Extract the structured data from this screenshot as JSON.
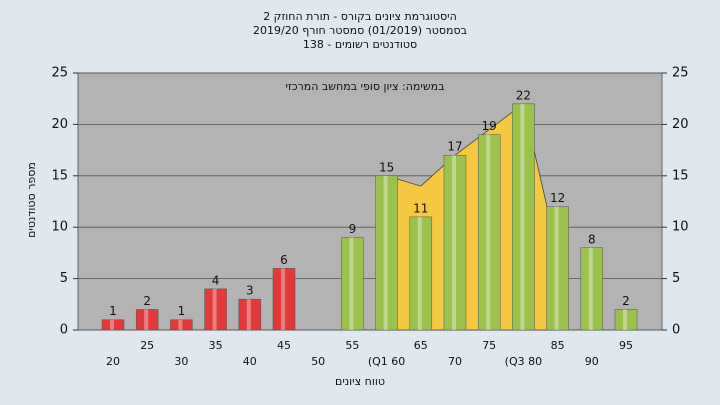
{
  "chart_data": {
    "type": "bar",
    "title": "היסטוגרמת ציונים בקורס - תורת החוזק 2",
    "subtitle": "בסמסטר  (01/2019)  סמסטר חורף 2019/20",
    "subtitle2": "סטודנטים רשומים - 138",
    "annotation": "במשימה: ציון סופי במחשב המרכזי",
    "ylabel": "מספר סטודנטים",
    "xlabel": "טווח ציונים",
    "categories": [
      "20",
      "25",
      "30",
      "35",
      "40",
      "45",
      "50",
      "55",
      "(Q1 60",
      "65",
      "70",
      "75",
      "(Q3 80",
      "85",
      "90",
      "95"
    ],
    "values": [
      1,
      2,
      1,
      4,
      3,
      6,
      null,
      9,
      15,
      11,
      17,
      19,
      22,
      12,
      8,
      2
    ],
    "colors": [
      "#e23a3a",
      "#e23a3a",
      "#e23a3a",
      "#e23a3a",
      "#e23a3a",
      "#e23a3a",
      "#e23a3a",
      "#9cc24e",
      "#9cc24e",
      "#9cc24e",
      "#9cc24e",
      "#9cc24e",
      "#9cc24e",
      "#9cc24e",
      "#9cc24e",
      "#9cc24e"
    ],
    "area": {
      "color": "#f5c842",
      "values": [
        null,
        null,
        null,
        null,
        null,
        null,
        null,
        null,
        15,
        14,
        17,
        19.5,
        22,
        7.5,
        null,
        null
      ]
    },
    "ylim": [
      0,
      25
    ],
    "yticks": [
      0,
      5,
      10,
      15,
      20,
      25
    ],
    "y2lim": [
      0,
      25
    ],
    "y2ticks": [
      0,
      5,
      10,
      15,
      20,
      25
    ],
    "grid": true
  }
}
